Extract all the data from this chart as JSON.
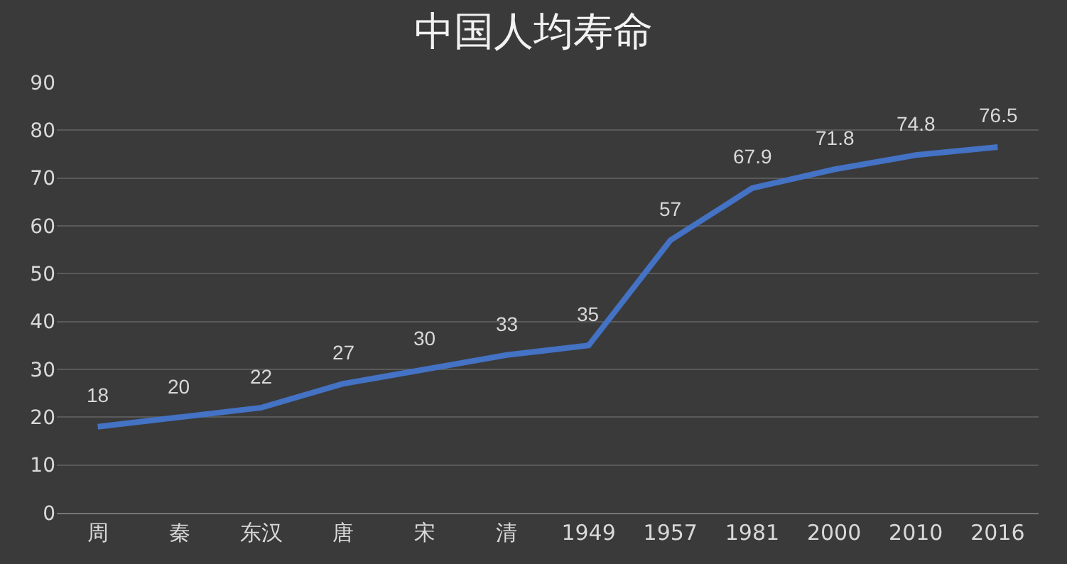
{
  "chart_data": {
    "type": "line",
    "title": "中国人均寿命",
    "categories": [
      "周",
      "秦",
      "东汉",
      "唐",
      "宋",
      "清",
      "1949",
      "1957",
      "1981",
      "2000",
      "2010",
      "2016"
    ],
    "series": [
      {
        "color": "#4472c4",
        "values": [
          18,
          20,
          22,
          27,
          30,
          33,
          35,
          57,
          67.9,
          71.8,
          74.8,
          76.5
        ]
      }
    ],
    "ylim": [
      0,
      90
    ],
    "yticks": [
      0,
      10,
      20,
      30,
      40,
      50,
      60,
      70,
      80,
      90
    ],
    "grid": "y",
    "data_labels": true,
    "marker": "none",
    "line_style": "solid"
  }
}
